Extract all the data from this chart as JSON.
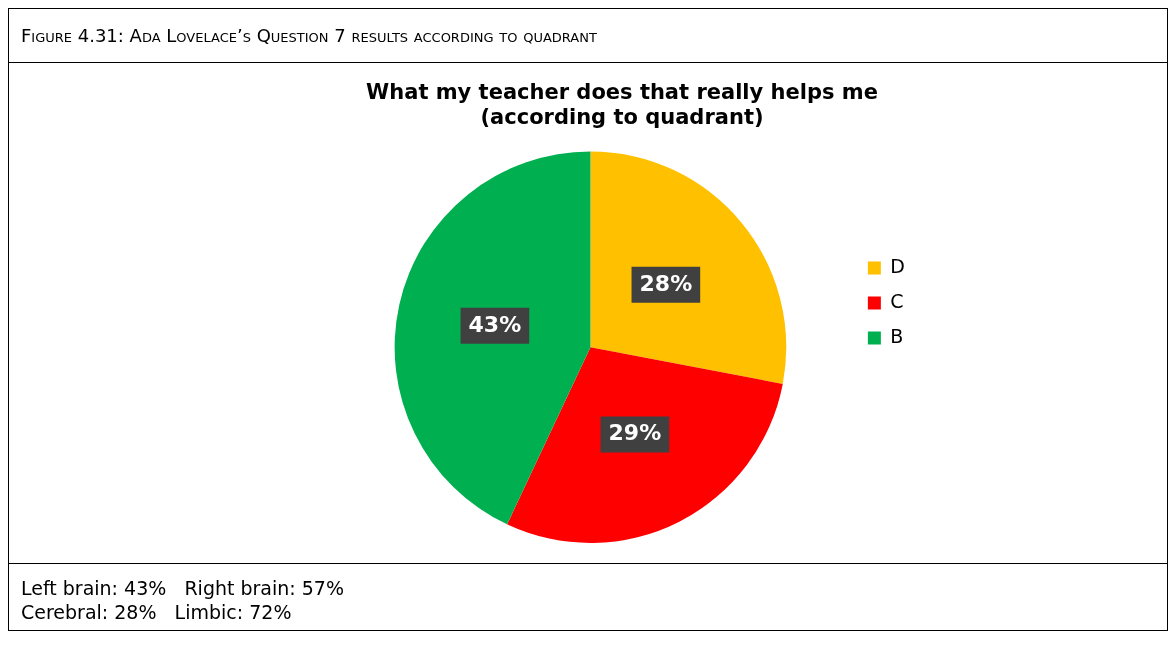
{
  "chart_data": {
    "type": "pie",
    "title": "What my teacher does that really helps me\n(according to quadrant)",
    "categories": [
      "D",
      "C",
      "B"
    ],
    "values": [
      28,
      29,
      43
    ],
    "colors": [
      "#ffc000",
      "#ff0000",
      "#00b050"
    ],
    "value_labels": [
      "28%",
      "29%",
      "43%"
    ],
    "legend": "right",
    "annotations": [
      "Figure 4.31: Ada Lovelace’s Question 7 results according to quadrant",
      "Left brain: 43%   Right brain: 57%",
      "Cerebral: 28%   Limbic: 72%"
    ]
  }
}
